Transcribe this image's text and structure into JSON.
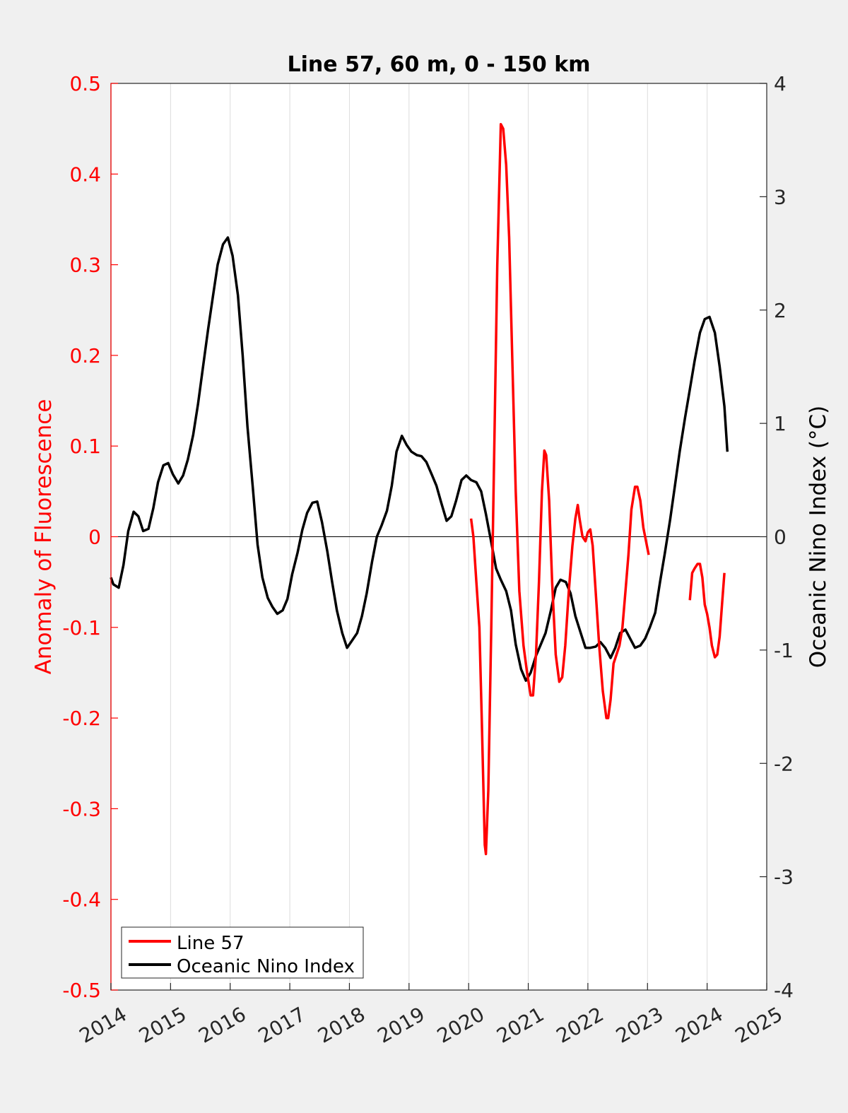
{
  "chart_data": {
    "type": "line",
    "title": "Line 57, 60 m, 0 - 150 km",
    "xlabel": "",
    "ylabel_left": "Anomaly of Fluorescence",
    "ylabel_right": "Oceanic Nino Index (°C)",
    "xlim": [
      2014,
      2025
    ],
    "ylim_left": [
      -0.5,
      0.5
    ],
    "ylim_right": [
      -4,
      4
    ],
    "x_ticks": [
      "2014",
      "2015",
      "2016",
      "2017",
      "2018",
      "2019",
      "2020",
      "2021",
      "2022",
      "2023",
      "2024",
      "2025"
    ],
    "y_left_ticks": [
      "-0.5",
      "-0.4",
      "-0.3",
      "-0.2",
      "-0.1",
      "0",
      "0.1",
      "0.2",
      "0.3",
      "0.4",
      "0.5"
    ],
    "y_right_ticks": [
      "-4",
      "-3",
      "-2",
      "-1",
      "0",
      "1",
      "2",
      "3",
      "4"
    ],
    "grid": "vertical",
    "legend_position": "bottom-left",
    "colors": {
      "line57": "#ff0000",
      "oni": "#000000",
      "left_axis": "#ff0000",
      "right_axis": "#000000",
      "background": "#f0f0f0",
      "plot_area": "#ffffff"
    },
    "series": [
      {
        "name": "Line 57",
        "axis": "left",
        "color": "#ff0000",
        "segments": [
          [
            [
              2020.04,
              0.02
            ],
            [
              2020.08,
              0.0
            ],
            [
              2020.13,
              -0.05
            ],
            [
              2020.18,
              -0.1
            ],
            [
              2020.22,
              -0.2
            ],
            [
              2020.27,
              -0.34
            ],
            [
              2020.29,
              -0.35
            ],
            [
              2020.33,
              -0.28
            ],
            [
              2020.38,
              -0.1
            ],
            [
              2020.43,
              0.1
            ],
            [
              2020.48,
              0.3
            ],
            [
              2020.54,
              0.455
            ],
            [
              2020.58,
              0.45
            ],
            [
              2020.63,
              0.41
            ],
            [
              2020.68,
              0.33
            ],
            [
              2020.73,
              0.2
            ],
            [
              2020.79,
              0.05
            ],
            [
              2020.85,
              -0.06
            ],
            [
              2020.92,
              -0.12
            ],
            [
              2020.98,
              -0.15
            ],
            [
              2021.04,
              -0.175
            ],
            [
              2021.08,
              -0.175
            ],
            [
              2021.13,
              -0.13
            ],
            [
              2021.18,
              -0.05
            ],
            [
              2021.23,
              0.05
            ],
            [
              2021.27,
              0.095
            ],
            [
              2021.3,
              0.09
            ],
            [
              2021.35,
              0.04
            ],
            [
              2021.4,
              -0.05
            ],
            [
              2021.46,
              -0.13
            ],
            [
              2021.52,
              -0.16
            ],
            [
              2021.57,
              -0.155
            ],
            [
              2021.62,
              -0.12
            ],
            [
              2021.68,
              -0.06
            ],
            [
              2021.74,
              -0.01
            ],
            [
              2021.79,
              0.02
            ],
            [
              2021.83,
              0.035
            ],
            [
              2021.86,
              0.02
            ],
            [
              2021.91,
              0.0
            ],
            [
              2021.96,
              -0.005
            ],
            [
              2022.0,
              0.005
            ],
            [
              2022.04,
              0.008
            ],
            [
              2022.08,
              -0.01
            ],
            [
              2022.13,
              -0.06
            ],
            [
              2022.19,
              -0.12
            ],
            [
              2022.25,
              -0.17
            ],
            [
              2022.31,
              -0.2
            ],
            [
              2022.34,
              -0.2
            ],
            [
              2022.38,
              -0.18
            ],
            [
              2022.43,
              -0.14
            ],
            [
              2022.48,
              -0.13
            ],
            [
              2022.53,
              -0.12
            ],
            [
              2022.58,
              -0.1
            ],
            [
              2022.63,
              -0.06
            ],
            [
              2022.68,
              -0.02
            ],
            [
              2022.73,
              0.03
            ],
            [
              2022.79,
              0.055
            ],
            [
              2022.83,
              0.055
            ],
            [
              2022.88,
              0.04
            ],
            [
              2022.93,
              0.01
            ],
            [
              2023.02,
              -0.02
            ]
          ],
          [
            [
              2023.71,
              -0.07
            ],
            [
              2023.75,
              -0.04
            ],
            [
              2023.79,
              -0.035
            ],
            [
              2023.84,
              -0.03
            ],
            [
              2023.88,
              -0.03
            ],
            [
              2023.92,
              -0.045
            ],
            [
              2023.96,
              -0.075
            ],
            [
              2024.0,
              -0.085
            ],
            [
              2024.04,
              -0.1
            ],
            [
              2024.08,
              -0.12
            ],
            [
              2024.13,
              -0.133
            ],
            [
              2024.17,
              -0.13
            ],
            [
              2024.21,
              -0.11
            ],
            [
              2024.25,
              -0.075
            ],
            [
              2024.29,
              -0.04
            ]
          ]
        ]
      },
      {
        "name": "Oceanic Nino Index",
        "axis": "right",
        "color": "#000000",
        "points": [
          [
            2014.0,
            -0.36
          ],
          [
            2014.04,
            -0.42
          ],
          [
            2014.13,
            -0.45
          ],
          [
            2014.21,
            -0.25
          ],
          [
            2014.29,
            0.05
          ],
          [
            2014.38,
            0.22
          ],
          [
            2014.46,
            0.18
          ],
          [
            2014.54,
            0.05
          ],
          [
            2014.63,
            0.07
          ],
          [
            2014.71,
            0.25
          ],
          [
            2014.79,
            0.48
          ],
          [
            2014.88,
            0.63
          ],
          [
            2014.96,
            0.65
          ],
          [
            2015.04,
            0.55
          ],
          [
            2015.13,
            0.47
          ],
          [
            2015.21,
            0.54
          ],
          [
            2015.29,
            0.68
          ],
          [
            2015.38,
            0.9
          ],
          [
            2015.46,
            1.17
          ],
          [
            2015.54,
            1.48
          ],
          [
            2015.63,
            1.83
          ],
          [
            2015.71,
            2.12
          ],
          [
            2015.79,
            2.4
          ],
          [
            2015.88,
            2.58
          ],
          [
            2015.96,
            2.64
          ],
          [
            2016.04,
            2.48
          ],
          [
            2016.13,
            2.13
          ],
          [
            2016.21,
            1.6
          ],
          [
            2016.29,
            0.97
          ],
          [
            2016.38,
            0.43
          ],
          [
            2016.46,
            -0.07
          ],
          [
            2016.54,
            -0.36
          ],
          [
            2016.63,
            -0.54
          ],
          [
            2016.71,
            -0.62
          ],
          [
            2016.79,
            -0.68
          ],
          [
            2016.88,
            -0.65
          ],
          [
            2016.96,
            -0.55
          ],
          [
            2017.04,
            -0.33
          ],
          [
            2017.13,
            -0.14
          ],
          [
            2017.21,
            0.06
          ],
          [
            2017.29,
            0.21
          ],
          [
            2017.38,
            0.3
          ],
          [
            2017.46,
            0.31
          ],
          [
            2017.54,
            0.13
          ],
          [
            2017.63,
            -0.13
          ],
          [
            2017.71,
            -0.4
          ],
          [
            2017.79,
            -0.65
          ],
          [
            2017.88,
            -0.85
          ],
          [
            2017.96,
            -0.98
          ],
          [
            2018.04,
            -0.92
          ],
          [
            2018.13,
            -0.85
          ],
          [
            2018.21,
            -0.7
          ],
          [
            2018.29,
            -0.5
          ],
          [
            2018.38,
            -0.22
          ],
          [
            2018.46,
            0.0
          ],
          [
            2018.54,
            0.1
          ],
          [
            2018.63,
            0.23
          ],
          [
            2018.71,
            0.45
          ],
          [
            2018.79,
            0.75
          ],
          [
            2018.88,
            0.89
          ],
          [
            2018.96,
            0.81
          ],
          [
            2019.04,
            0.75
          ],
          [
            2019.13,
            0.72
          ],
          [
            2019.21,
            0.71
          ],
          [
            2019.29,
            0.66
          ],
          [
            2019.38,
            0.55
          ],
          [
            2019.46,
            0.45
          ],
          [
            2019.54,
            0.3
          ],
          [
            2019.63,
            0.14
          ],
          [
            2019.71,
            0.18
          ],
          [
            2019.79,
            0.32
          ],
          [
            2019.88,
            0.5
          ],
          [
            2019.96,
            0.54
          ],
          [
            2020.04,
            0.5
          ],
          [
            2020.13,
            0.48
          ],
          [
            2020.21,
            0.4
          ],
          [
            2020.29,
            0.2
          ],
          [
            2020.38,
            -0.05
          ],
          [
            2020.46,
            -0.28
          ],
          [
            2020.54,
            -0.38
          ],
          [
            2020.63,
            -0.48
          ],
          [
            2020.71,
            -0.65
          ],
          [
            2020.79,
            -0.95
          ],
          [
            2020.88,
            -1.17
          ],
          [
            2020.96,
            -1.27
          ],
          [
            2021.04,
            -1.2
          ],
          [
            2021.13,
            -1.05
          ],
          [
            2021.21,
            -0.95
          ],
          [
            2021.29,
            -0.85
          ],
          [
            2021.38,
            -0.65
          ],
          [
            2021.46,
            -0.45
          ],
          [
            2021.54,
            -0.38
          ],
          [
            2021.63,
            -0.4
          ],
          [
            2021.71,
            -0.5
          ],
          [
            2021.79,
            -0.7
          ],
          [
            2021.88,
            -0.85
          ],
          [
            2021.96,
            -0.98
          ],
          [
            2022.04,
            -0.98
          ],
          [
            2022.13,
            -0.97
          ],
          [
            2022.21,
            -0.93
          ],
          [
            2022.29,
            -0.98
          ],
          [
            2022.38,
            -1.07
          ],
          [
            2022.46,
            -0.98
          ],
          [
            2022.54,
            -0.85
          ],
          [
            2022.63,
            -0.82
          ],
          [
            2022.71,
            -0.9
          ],
          [
            2022.79,
            -0.98
          ],
          [
            2022.88,
            -0.96
          ],
          [
            2022.96,
            -0.9
          ],
          [
            2023.04,
            -0.8
          ],
          [
            2023.13,
            -0.67
          ],
          [
            2023.21,
            -0.4
          ],
          [
            2023.29,
            -0.15
          ],
          [
            2023.38,
            0.15
          ],
          [
            2023.46,
            0.45
          ],
          [
            2023.54,
            0.75
          ],
          [
            2023.63,
            1.05
          ],
          [
            2023.71,
            1.3
          ],
          [
            2023.79,
            1.55
          ],
          [
            2023.88,
            1.8
          ],
          [
            2023.96,
            1.92
          ],
          [
            2024.04,
            1.94
          ],
          [
            2024.13,
            1.8
          ],
          [
            2024.21,
            1.5
          ],
          [
            2024.29,
            1.15
          ],
          [
            2024.34,
            0.75
          ]
        ]
      }
    ]
  }
}
